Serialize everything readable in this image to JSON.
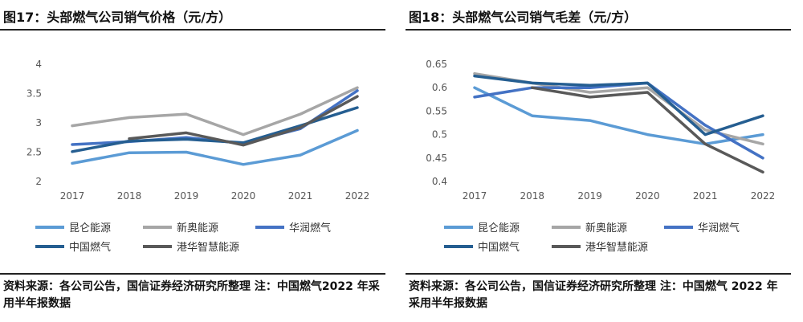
{
  "figures": [
    {
      "title": "图17：头部燃气公司销气价格（元/方）",
      "source": "资料来源：各公司公告，国信证券经济研究所整理 注：中国燃气2022 年采用半年报数据"
    },
    {
      "title": "图18：头部燃气公司销气毛差（元/方）",
      "source": "资料来源：各公司公告，国信证券经济研究所整理 注：中国燃气 2022 年采用半年报数据"
    }
  ],
  "chart_data": [
    {
      "type": "line",
      "title": "图17：头部燃气公司销气价格（元/方）",
      "x": [
        "2017",
        "2018",
        "2019",
        "2020",
        "2021",
        "2022"
      ],
      "ylim": [
        2,
        4
      ],
      "yticks": [
        2,
        2.5,
        3,
        3.5,
        4
      ],
      "ytick_labels": [
        "2",
        "2.5",
        "3",
        "3.5",
        "4"
      ],
      "grid": false,
      "legend_position": "bottom",
      "series": [
        {
          "name": "昆仑能源",
          "color": "#5b9bd5",
          "values": [
            2.31,
            2.49,
            2.5,
            2.29,
            2.45,
            2.87
          ]
        },
        {
          "name": "新奥能源",
          "color": "#a6a6a6",
          "values": [
            2.95,
            3.09,
            3.15,
            2.8,
            3.15,
            3.6
          ]
        },
        {
          "name": "华润燃气",
          "color": "#4472c4",
          "values": [
            2.63,
            2.68,
            2.75,
            2.65,
            2.9,
            3.55
          ]
        },
        {
          "name": "中国燃气",
          "color": "#255e91",
          "values": [
            2.51,
            2.69,
            2.72,
            2.66,
            2.95,
            3.26
          ]
        },
        {
          "name": "港华智慧能源",
          "color": "#595959",
          "values": [
            null,
            2.73,
            2.83,
            2.62,
            2.92,
            3.45
          ]
        }
      ]
    },
    {
      "type": "line",
      "title": "图18：头部燃气公司销气毛差（元/方）",
      "x": [
        "2017",
        "2018",
        "2019",
        "2020",
        "2021",
        "2022"
      ],
      "ylim": [
        0.4,
        0.65
      ],
      "yticks": [
        0.4,
        0.45,
        0.5,
        0.55,
        0.6,
        0.65
      ],
      "ytick_labels": [
        "0.4",
        "0.45",
        "0.5",
        "0.55",
        "0.6",
        "0.65"
      ],
      "grid": false,
      "legend_position": "bottom",
      "series": [
        {
          "name": "昆仑能源",
          "color": "#5b9bd5",
          "values": [
            0.6,
            0.54,
            0.53,
            0.5,
            0.48,
            0.5
          ]
        },
        {
          "name": "新奥能源",
          "color": "#a6a6a6",
          "values": [
            0.63,
            0.61,
            0.59,
            0.6,
            0.51,
            0.48
          ]
        },
        {
          "name": "华润燃气",
          "color": "#4472c4",
          "values": [
            0.58,
            0.6,
            0.6,
            0.61,
            0.52,
            0.45
          ]
        },
        {
          "name": "中国燃气",
          "color": "#255e91",
          "values": [
            0.625,
            0.61,
            0.605,
            0.61,
            0.5,
            0.54
          ]
        },
        {
          "name": "港华智慧能源",
          "color": "#595959",
          "values": [
            null,
            0.6,
            0.58,
            0.59,
            0.48,
            0.42
          ]
        }
      ]
    }
  ]
}
